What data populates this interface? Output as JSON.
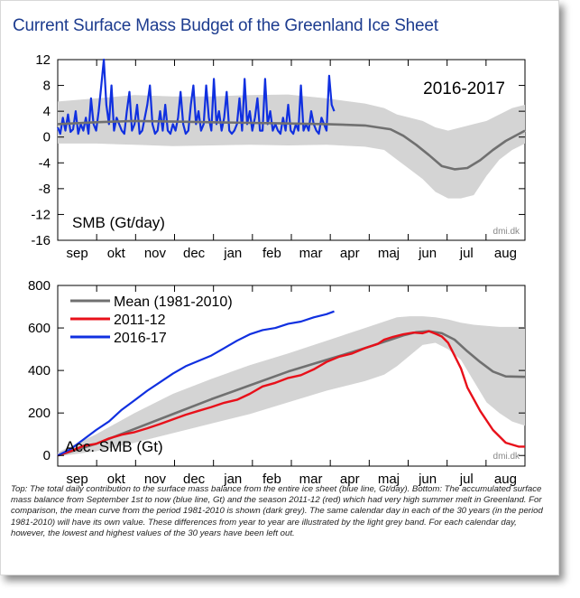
{
  "header": {
    "title": "Current Surface Mass Budget of the Greenland Ice Sheet"
  },
  "caption": "Top: The total daily contribution to the surface mass balance from the entire ice sheet (blue line, Gt/day). Bottom: The accumulated surface mass balance from September 1st to now (blue line, Gt) and the season 2011-12 (red) which had very high summer melt in Greenland. For comparison, the mean curve from the period 1981-2010 is shown (dark grey). The same calendar day in each of the 30 years (in the period 1981-2010) will have its own value. These differences from year to year are illustrated by the light grey band. For each calendar day, however, the lowest and highest values of the 30 years have been left out.",
  "colors": {
    "title": "#1d3c8f",
    "current": "#1030e0",
    "season_2011": "#e8101a",
    "mean": "#707070",
    "band": "#d4d4d4"
  },
  "chart_data": [
    {
      "type": "line",
      "title": "2016-2017",
      "ylabel": "SMB (Gt/day)",
      "watermark": "dmi.dk",
      "months": [
        "sep",
        "okt",
        "nov",
        "dec",
        "jan",
        "feb",
        "mar",
        "apr",
        "maj",
        "jun",
        "jul",
        "aug"
      ],
      "xlim": [
        0,
        365
      ],
      "ylim": [
        -16,
        12
      ],
      "yticks": [
        12,
        8,
        4,
        0,
        -4,
        -8,
        -12,
        -16
      ],
      "series": [
        {
          "role": "current",
          "x": [
            0,
            2,
            4,
            6,
            8,
            10,
            12,
            14,
            16,
            18,
            20,
            22,
            24,
            26,
            28,
            30,
            32,
            34,
            36,
            38,
            40,
            42,
            44,
            46,
            48,
            50,
            52,
            54,
            56,
            58,
            60,
            62,
            64,
            66,
            68,
            70,
            72,
            74,
            76,
            78,
            80,
            82,
            84,
            86,
            88,
            90,
            92,
            94,
            96,
            98,
            100,
            102,
            104,
            106,
            108,
            110,
            112,
            114,
            116,
            118,
            120,
            122,
            124,
            126,
            128,
            130,
            132,
            134,
            136,
            138,
            140,
            142,
            144,
            146,
            148,
            150,
            152,
            154,
            156,
            158,
            160,
            162,
            164,
            166,
            168,
            170,
            172,
            174,
            176,
            178,
            180,
            182,
            184,
            186,
            188,
            190,
            192,
            194,
            196,
            198,
            200,
            202,
            204,
            206,
            208,
            210,
            212,
            214,
            216
          ],
          "y": [
            1.5,
            0.5,
            3,
            1,
            3.5,
            0.8,
            1.2,
            4,
            0.5,
            2,
            1,
            3,
            0.5,
            6,
            2,
            1,
            4,
            8,
            12,
            5,
            2,
            8,
            1,
            3,
            2,
            1,
            0.5,
            4,
            7,
            1,
            2,
            5,
            0.5,
            1,
            3,
            5,
            8,
            2,
            0.5,
            1,
            4,
            1,
            5,
            1,
            0.5,
            2,
            1,
            3,
            7,
            2,
            0.5,
            1,
            5,
            8,
            2,
            4,
            1,
            2,
            8,
            3,
            1,
            9,
            2,
            4,
            1,
            3,
            7,
            1,
            0.5,
            1,
            2,
            6,
            1,
            9,
            2,
            4,
            1,
            3,
            6,
            1,
            1,
            9,
            2,
            4,
            1,
            2,
            1,
            0.5,
            3,
            1,
            5,
            1,
            0.5,
            2,
            1,
            8,
            1,
            2,
            1,
            4,
            2,
            1,
            0.5,
            3,
            2,
            1,
            9.5,
            5,
            4
          ]
        },
        {
          "role": "mean",
          "x": [
            0,
            30,
            60,
            90,
            120,
            150,
            180,
            210,
            240,
            260,
            270,
            280,
            290,
            300,
            310,
            320,
            330,
            340,
            350,
            365
          ],
          "y": [
            2,
            2.3,
            2.5,
            2.4,
            2.3,
            2.2,
            2.1,
            2.0,
            1.8,
            1.2,
            0.2,
            -1.2,
            -2.8,
            -4.5,
            -5.0,
            -4.8,
            -3.6,
            -2,
            -0.6,
            1
          ]
        },
        {
          "role": "band",
          "x": [
            0,
            30,
            60,
            90,
            120,
            150,
            180,
            210,
            240,
            255,
            265,
            275,
            285,
            295,
            305,
            315,
            325,
            335,
            345,
            355,
            365
          ],
          "low": [
            -1,
            -1,
            -1.2,
            -1.4,
            -1.3,
            -1.2,
            -1.3,
            -1.2,
            -1.5,
            -2,
            -3.5,
            -5,
            -6.5,
            -8.5,
            -9.5,
            -9.5,
            -9,
            -6,
            -3.5,
            -2,
            -1
          ],
          "high": [
            5.5,
            6,
            6.5,
            6.3,
            6.3,
            6.5,
            6.6,
            6,
            5.2,
            4.5,
            3.5,
            3,
            2.5,
            1.5,
            1,
            1.5,
            2,
            2.5,
            3.5,
            4.5,
            5
          ]
        }
      ]
    },
    {
      "type": "line",
      "ylabel": "Acc. SMB (Gt)",
      "watermark": "dmi.dk",
      "months": [
        "sep",
        "okt",
        "nov",
        "dec",
        "jan",
        "feb",
        "mar",
        "apr",
        "maj",
        "jun",
        "jul",
        "aug"
      ],
      "xlim": [
        0,
        365
      ],
      "ylim": [
        -50,
        800
      ],
      "yticks": [
        800,
        600,
        400,
        200,
        0
      ],
      "legend": [
        "Mean (1981-2010)",
        "2011-12",
        "2016-17"
      ],
      "series": [
        {
          "name": "Mean (1981-2010)",
          "x": [
            0,
            30,
            60,
            90,
            120,
            150,
            180,
            210,
            240,
            260,
            270,
            280,
            290,
            300,
            310,
            320,
            330,
            340,
            350,
            365
          ],
          "y": [
            0,
            55,
            125,
            195,
            265,
            330,
            395,
            450,
            505,
            545,
            565,
            580,
            585,
            575,
            545,
            490,
            440,
            395,
            372,
            370
          ]
        },
        {
          "name": "2011-12",
          "x": [
            0,
            10,
            20,
            30,
            40,
            50,
            60,
            70,
            80,
            90,
            100,
            110,
            120,
            130,
            140,
            150,
            160,
            170,
            180,
            190,
            200,
            210,
            220,
            230,
            240,
            250,
            255,
            262,
            270,
            278,
            285,
            290,
            295,
            300,
            305,
            310,
            315,
            320,
            330,
            340,
            350,
            360,
            365
          ],
          "y": [
            0,
            20,
            45,
            55,
            80,
            98,
            110,
            128,
            148,
            170,
            192,
            210,
            228,
            248,
            262,
            290,
            325,
            342,
            365,
            378,
            405,
            440,
            465,
            480,
            505,
            525,
            545,
            558,
            570,
            578,
            575,
            585,
            573,
            560,
            530,
            470,
            410,
            320,
            210,
            120,
            60,
            42,
            42
          ]
        },
        {
          "name": "2016-17",
          "x": [
            0,
            10,
            20,
            30,
            40,
            50,
            60,
            70,
            80,
            90,
            100,
            110,
            120,
            130,
            140,
            150,
            160,
            170,
            180,
            190,
            200,
            210,
            216
          ],
          "y": [
            0,
            30,
            75,
            120,
            160,
            215,
            260,
            305,
            345,
            385,
            420,
            445,
            470,
            505,
            540,
            570,
            590,
            600,
            620,
            630,
            650,
            665,
            678
          ]
        },
        {
          "role": "band",
          "x": [
            0,
            30,
            60,
            90,
            120,
            150,
            180,
            210,
            240,
            255,
            265,
            275,
            285,
            295,
            305,
            315,
            325,
            335,
            345,
            355,
            365
          ],
          "low": [
            -5,
            20,
            60,
            105,
            150,
            195,
            250,
            305,
            350,
            380,
            420,
            470,
            520,
            530,
            500,
            450,
            350,
            250,
            200,
            160,
            140
          ],
          "high": [
            15,
            100,
            200,
            290,
            360,
            425,
            480,
            540,
            600,
            630,
            650,
            655,
            655,
            650,
            640,
            625,
            615,
            610,
            605,
            605,
            605
          ]
        }
      ]
    }
  ]
}
